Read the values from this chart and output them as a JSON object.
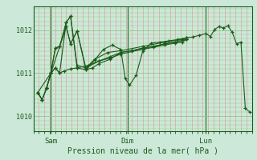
{
  "bg_color": "#cce8d8",
  "grid_color_v": "#e8a0a0",
  "grid_color_h": "#88c888",
  "line_color": "#1a5c1a",
  "marker_color": "#1a5c1a",
  "ylabel_ticks": [
    1010,
    1011,
    1012
  ],
  "xlabel": "Pression niveau de la mer( hPa )",
  "day_labels": [
    "Sam",
    "Dim",
    "Lun"
  ],
  "day_positions": [
    0.08,
    0.43,
    0.79
  ],
  "xlim": [
    0.0,
    1.0
  ],
  "ylim": [
    1009.65,
    1012.55
  ],
  "series": [
    [
      0.02,
      1010.55,
      0.04,
      1010.38,
      0.06,
      1010.65,
      0.08,
      1011.0,
      0.1,
      1011.12,
      0.12,
      1011.0,
      0.14,
      1011.05,
      0.17,
      1011.1,
      0.2,
      1011.12,
      0.25,
      1011.18,
      0.3,
      1011.28,
      0.35,
      1011.35,
      0.4,
      1011.44,
      0.45,
      1011.5,
      0.5,
      1011.55,
      0.55,
      1011.6,
      0.6,
      1011.65,
      0.65,
      1011.7,
      0.68,
      1011.72,
      0.7,
      1011.78
    ],
    [
      0.02,
      1010.55,
      0.04,
      1010.38,
      0.06,
      1010.65,
      0.08,
      1011.0,
      0.1,
      1011.58,
      0.12,
      1011.62,
      0.15,
      1012.08,
      0.17,
      1011.68,
      0.2,
      1011.98,
      0.24,
      1011.08,
      0.28,
      1011.3,
      0.32,
      1011.55,
      0.36,
      1011.65,
      0.4,
      1011.55,
      0.42,
      1010.88,
      0.44,
      1010.72,
      0.47,
      1010.95,
      0.5,
      1011.5,
      0.54,
      1011.7,
      0.58,
      1011.72,
      0.62,
      1011.75,
      0.66,
      1011.78,
      0.7,
      1011.82,
      0.73,
      1011.84,
      0.76,
      1011.88,
      0.79,
      1011.92,
      0.81,
      1011.85,
      0.83,
      1012.02,
      0.85,
      1012.08,
      0.87,
      1012.05,
      0.89,
      1012.1,
      0.91,
      1011.95,
      0.93,
      1011.68,
      0.95,
      1011.72,
      0.97,
      1010.18,
      0.99,
      1010.1
    ],
    [
      0.02,
      1010.55,
      0.04,
      1010.38,
      0.06,
      1010.65,
      0.08,
      1011.0,
      0.1,
      1011.58,
      0.12,
      1011.62,
      0.15,
      1012.18,
      0.17,
      1012.32,
      0.2,
      1011.18,
      0.24,
      1011.12,
      0.28,
      1011.32,
      0.34,
      1011.48,
      0.4,
      1011.52,
      0.5,
      1011.62,
      0.6,
      1011.72,
      0.68,
      1011.78,
      0.7,
      1011.82
    ],
    [
      0.02,
      1010.55,
      0.08,
      1011.0,
      0.15,
      1012.08,
      0.17,
      1011.68,
      0.2,
      1011.98,
      0.24,
      1011.12,
      0.3,
      1011.28,
      0.35,
      1011.38,
      0.4,
      1011.48,
      0.45,
      1011.52,
      0.5,
      1011.58,
      0.55,
      1011.62,
      0.6,
      1011.68,
      0.65,
      1011.72,
      0.7,
      1011.78
    ],
    [
      0.06,
      1010.65,
      0.08,
      1011.0,
      0.1,
      1011.12,
      0.12,
      1011.0,
      0.15,
      1012.18,
      0.17,
      1012.32,
      0.2,
      1011.12,
      0.24,
      1011.08,
      0.27,
      1011.12,
      0.3,
      1011.22,
      0.35,
      1011.32,
      0.4,
      1011.48,
      0.45,
      1011.52,
      0.5,
      1011.58,
      0.55,
      1011.62,
      0.6,
      1011.68,
      0.65,
      1011.72,
      0.7,
      1011.78
    ]
  ]
}
